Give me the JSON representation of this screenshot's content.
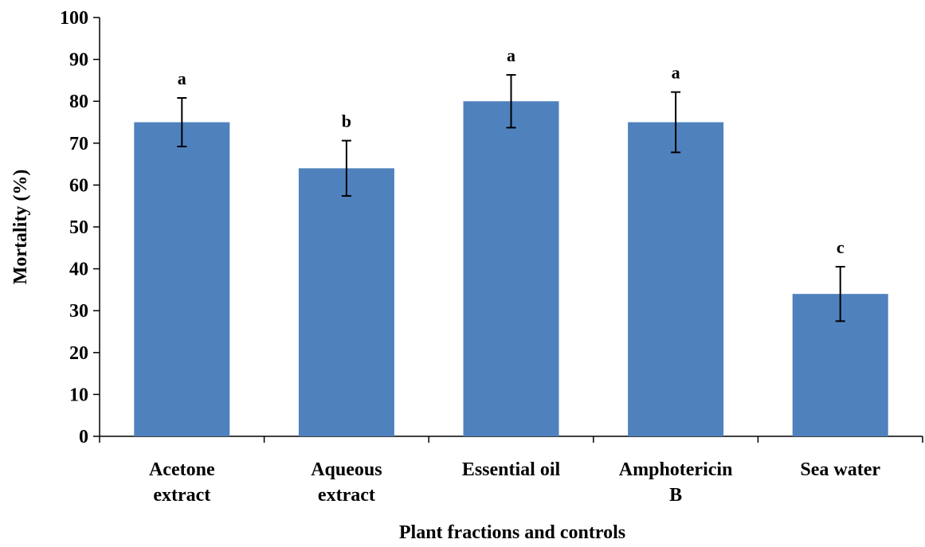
{
  "chart_data": {
    "type": "bar",
    "title": "",
    "xlabel": "Plant fractions  and controls",
    "ylabel": "Mortality  (%)",
    "ylim": [
      0,
      100
    ],
    "yticks": [
      0,
      10,
      20,
      30,
      40,
      50,
      60,
      70,
      80,
      90,
      100
    ],
    "grid": false,
    "legend": "none",
    "categories": [
      [
        "Acetone",
        "extract"
      ],
      [
        "Aqueous",
        "extract"
      ],
      [
        "Essential oil"
      ],
      [
        "Amphotericin",
        "B"
      ],
      [
        "Sea water"
      ]
    ],
    "values": [
      75,
      64,
      80,
      75,
      34
    ],
    "error": [
      5.8,
      6.6,
      6.3,
      7.2,
      6.5
    ],
    "significance": [
      "a",
      "b",
      "a",
      "a",
      "c"
    ],
    "bar_color": "#4f81bd"
  }
}
